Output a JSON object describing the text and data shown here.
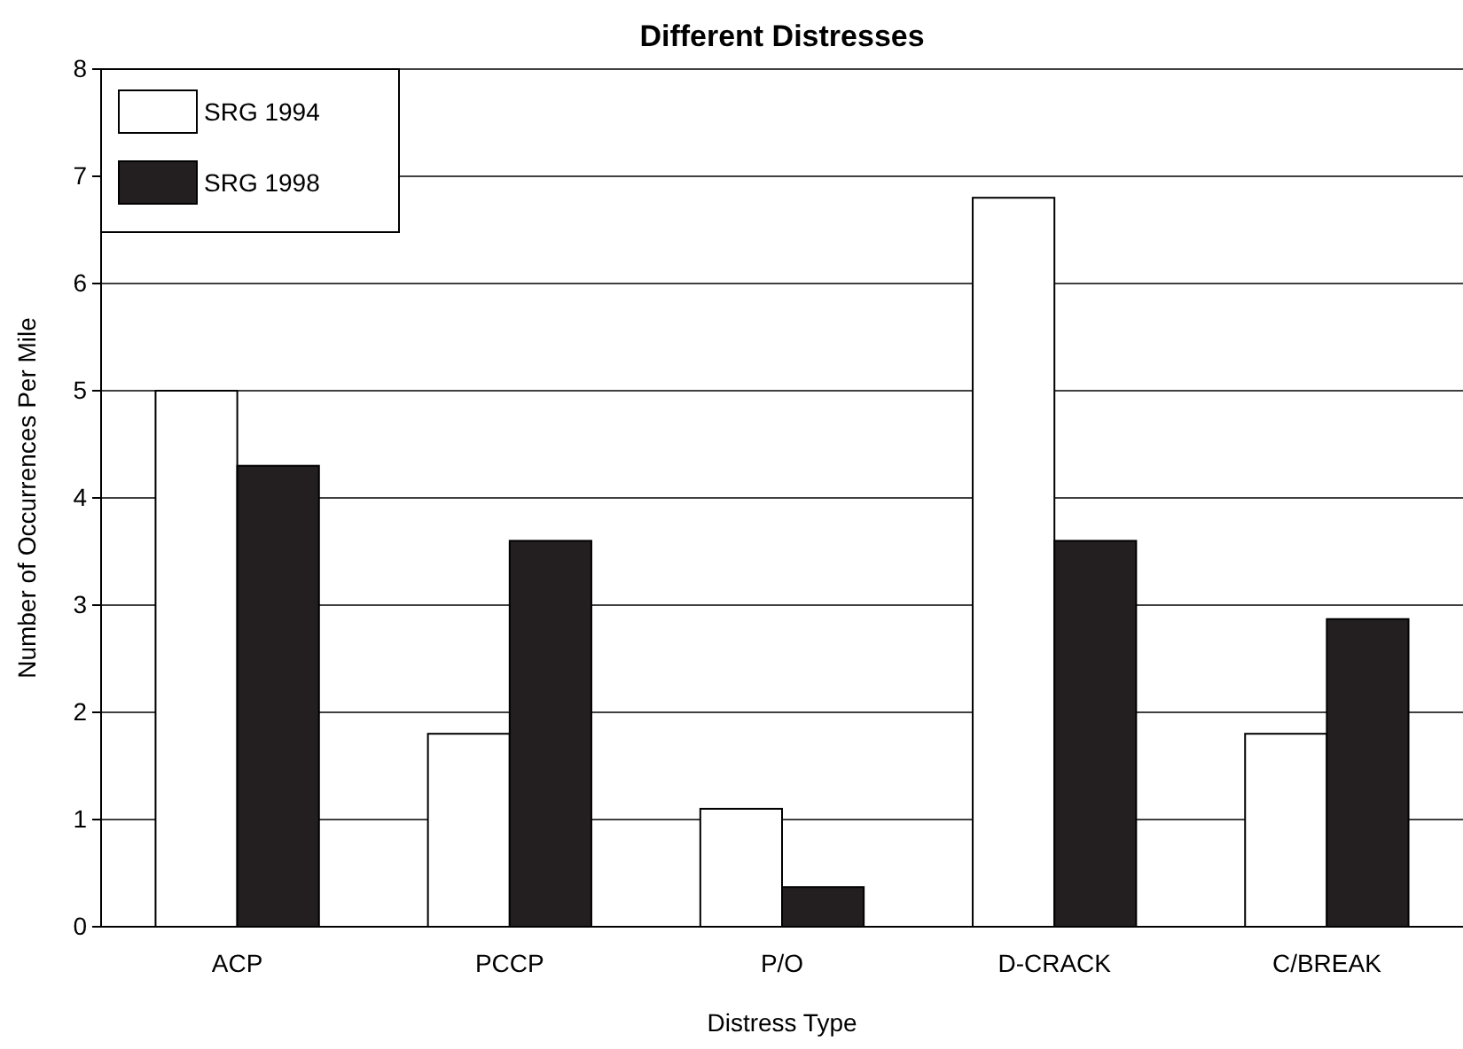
{
  "chart_data": {
    "type": "bar",
    "title": "Different Distresses",
    "xlabel": "Distress Type",
    "ylabel": "Number of Occurrences Per Mile",
    "categories": [
      "ACP",
      "PCCP",
      "P/O",
      "D-CRACK",
      "C/BREAK"
    ],
    "series": [
      {
        "name": "SRG 1994",
        "color": "#ffffff",
        "values": [
          5.0,
          1.8,
          1.1,
          6.8,
          1.8
        ]
      },
      {
        "name": "SRG 1998",
        "color": "#231f20",
        "values": [
          4.3,
          3.6,
          0.37,
          3.6,
          2.87
        ]
      }
    ],
    "ylim": [
      0,
      8
    ],
    "yticks": [
      0,
      1,
      2,
      3,
      4,
      5,
      6,
      7,
      8
    ],
    "grid": "y",
    "legend": "top left"
  }
}
